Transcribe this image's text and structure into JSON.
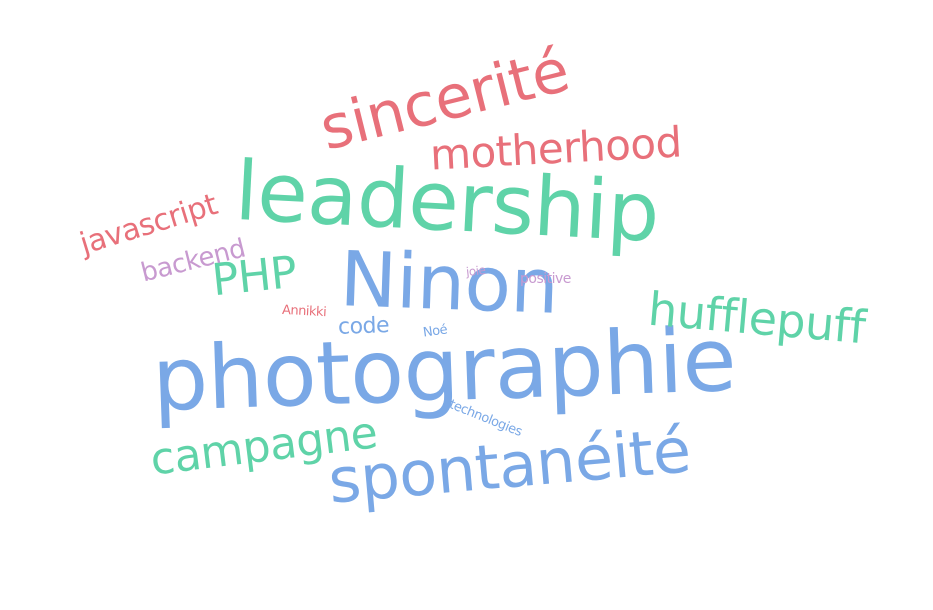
{
  "palette": {
    "green": "#5fd3a8",
    "blue": "#7aa8e6",
    "red": "#e8707a",
    "purple": "#c89ad0",
    "background": "#ffffff"
  },
  "words": [
    {
      "key": "leadership",
      "text": "leadership",
      "color": "#5fd3a8"
    },
    {
      "key": "photographie",
      "text": "photographie",
      "color": "#7aa8e6"
    },
    {
      "key": "ninon",
      "text": "Ninon",
      "color": "#7aa8e6"
    },
    {
      "key": "sincerite",
      "text": "sincerité",
      "color": "#e8707a"
    },
    {
      "key": "motherhood",
      "text": "motherhood",
      "color": "#e8707a"
    },
    {
      "key": "spontaneite",
      "text": "spontanéité",
      "color": "#7aa8e6"
    },
    {
      "key": "hufflepuff",
      "text": "hufflepuff",
      "color": "#5fd3a8"
    },
    {
      "key": "campagne",
      "text": "campagne",
      "color": "#5fd3a8"
    },
    {
      "key": "php",
      "text": "PHP",
      "color": "#5fd3a8"
    },
    {
      "key": "javascript",
      "text": "javascript",
      "color": "#e8707a"
    },
    {
      "key": "backend",
      "text": "backend",
      "color": "#c89ad0"
    },
    {
      "key": "code",
      "text": "code",
      "color": "#7aa8e6"
    },
    {
      "key": "annikki",
      "text": "Annikki",
      "color": "#e8707a"
    },
    {
      "key": "noe",
      "text": "Noé",
      "color": "#7aa8e6"
    },
    {
      "key": "joie",
      "text": "joie",
      "color": "#c89ad0"
    },
    {
      "key": "positive",
      "text": "positive",
      "color": "#c89ad0"
    },
    {
      "key": "technologies",
      "text": "technologies",
      "color": "#7aa8e6"
    }
  ]
}
